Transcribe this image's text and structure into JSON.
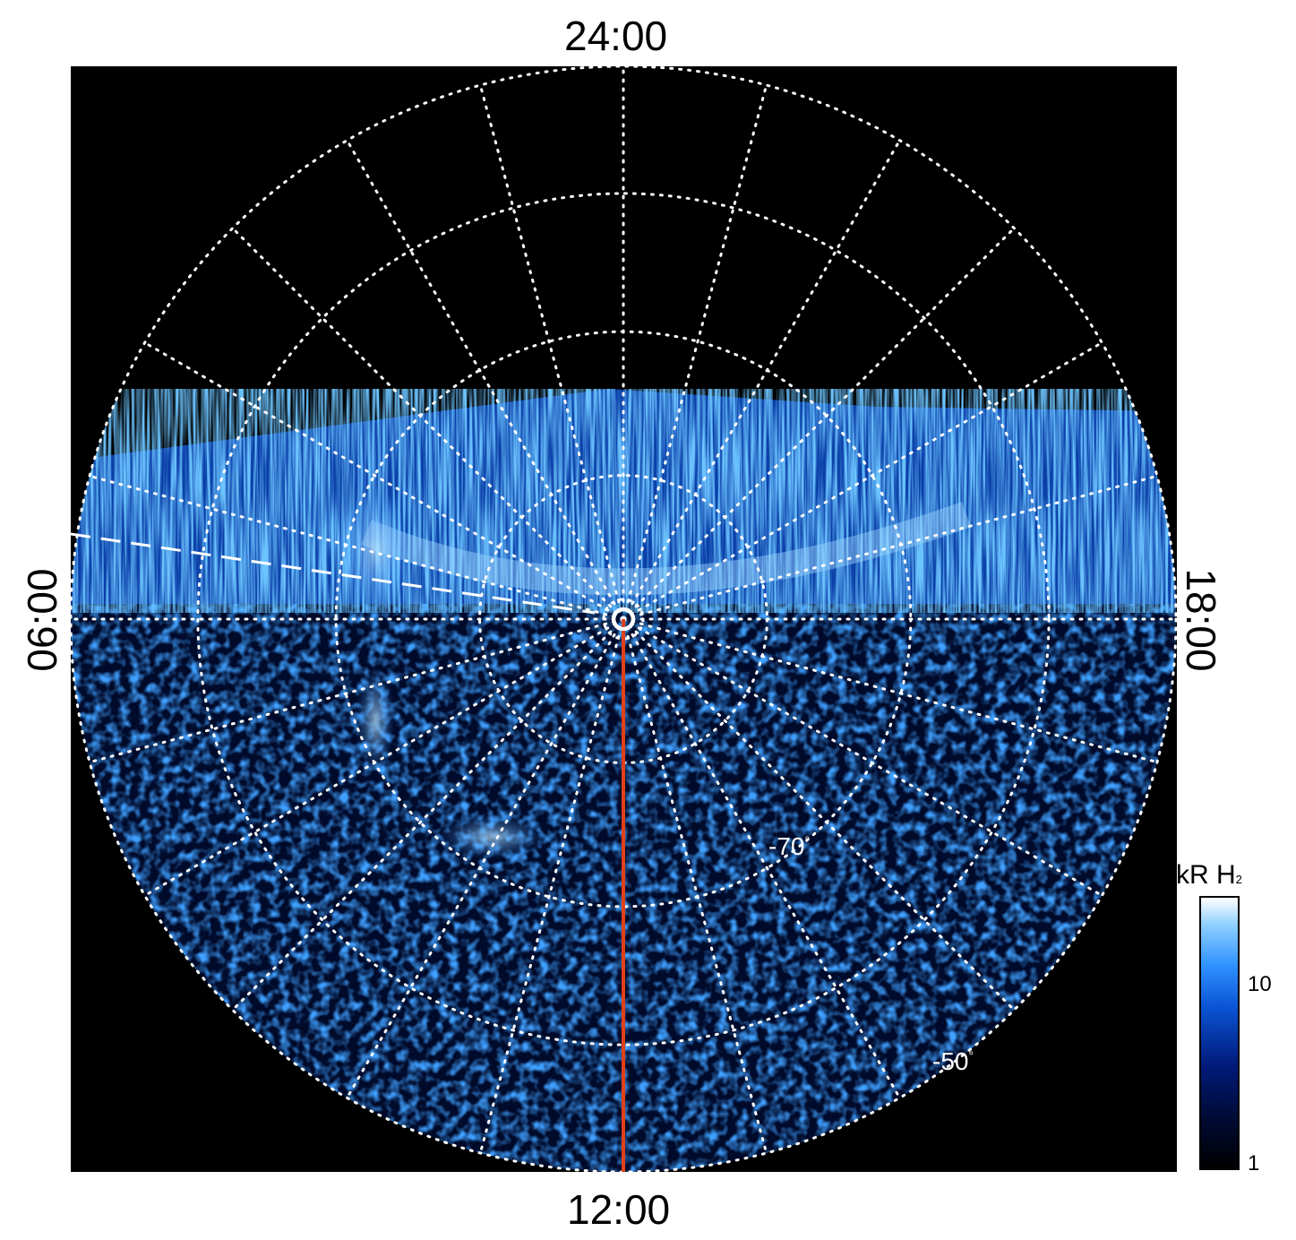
{
  "local_time_labels": {
    "top": "24:00",
    "bottom": "12:00",
    "left": "06:00",
    "right": "18:00"
  },
  "latitude_labels": [
    {
      "text": "-70",
      "unit": "°"
    },
    {
      "text": "-50",
      "unit": "°"
    }
  ],
  "colorbar": {
    "title": "kR H",
    "title_subscript": "2",
    "scale": "log",
    "ticks": [
      "10",
      "1"
    ]
  },
  "colors": {
    "background": "#000000",
    "grid": "#ffffff",
    "noon_meridian": "#e0401a",
    "emission_low": "#000a33",
    "emission_mid": "#0b55d6",
    "emission_high": "#8fd0ff"
  }
}
